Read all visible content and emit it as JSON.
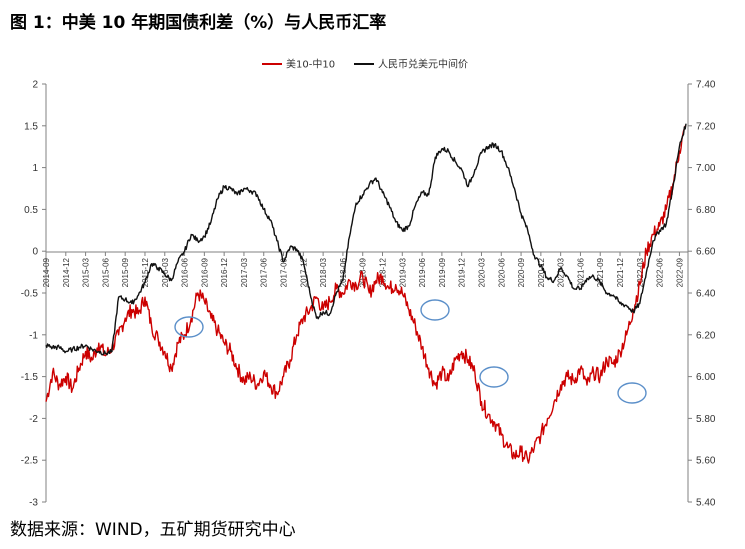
{
  "figure": {
    "title": "图 1：中美 10 年期国债利差（%）与人民币汇率",
    "source": "数据来源：WIND，五矿期货研究中心"
  },
  "colors": {
    "spread": "#cc0000",
    "usdcny": "#111111",
    "markers": "#5b8fc9",
    "axis": "#808080"
  },
  "chart_data": {
    "type": "line",
    "legend_position": "top-center",
    "grid": false,
    "x_ticks": [
      "2014-09",
      "2014-12",
      "2015-03",
      "2015-06",
      "2015-09",
      "2015-12",
      "2016-03",
      "2016-06",
      "2016-09",
      "2016-12",
      "2017-03",
      "2017-06",
      "2017-09",
      "2017-12",
      "2018-03",
      "2018-06",
      "2018-09",
      "2018-12",
      "2019-03",
      "2019-06",
      "2019-09",
      "2019-12",
      "2020-03",
      "2020-06",
      "2020-09",
      "2020-12",
      "2021-03",
      "2021-06",
      "2021-09",
      "2021-12",
      "2022-03",
      "2022-06",
      "2022-09"
    ],
    "y_left": {
      "range": [
        -3,
        2
      ],
      "ticks": [
        "-3",
        "-2.5",
        "-2",
        "-1.5",
        "-1",
        "-0.5",
        "0",
        "0.5",
        "1",
        "1.5",
        "2"
      ]
    },
    "y_right": {
      "range": [
        5.4,
        7.4
      ],
      "ticks": [
        "5.40",
        "5.60",
        "5.80",
        "6.00",
        "6.20",
        "6.40",
        "6.60",
        "6.80",
        "7.00",
        "7.20",
        "7.40"
      ]
    },
    "series": [
      {
        "name": "美10-中10",
        "axis": "left",
        "x": [
          "2014-09",
          "2014-10",
          "2014-11",
          "2014-12",
          "2015-01",
          "2015-02",
          "2015-03",
          "2015-04",
          "2015-05",
          "2015-06",
          "2015-07",
          "2015-08",
          "2015-09",
          "2015-10",
          "2015-11",
          "2015-12",
          "2016-01",
          "2016-02",
          "2016-03",
          "2016-04",
          "2016-05",
          "2016-06",
          "2016-07",
          "2016-08",
          "2016-09",
          "2016-10",
          "2016-11",
          "2016-12",
          "2017-01",
          "2017-02",
          "2017-03",
          "2017-04",
          "2017-05",
          "2017-06",
          "2017-07",
          "2017-08",
          "2017-09",
          "2017-10",
          "2017-11",
          "2017-12",
          "2018-01",
          "2018-02",
          "2018-03",
          "2018-04",
          "2018-05",
          "2018-06",
          "2018-07",
          "2018-08",
          "2018-09",
          "2018-10",
          "2018-11",
          "2018-12",
          "2019-01",
          "2019-02",
          "2019-03",
          "2019-04",
          "2019-05",
          "2019-06",
          "2019-07",
          "2019-08",
          "2019-09",
          "2019-10",
          "2019-11",
          "2019-12",
          "2020-01",
          "2020-02",
          "2020-03",
          "2020-04",
          "2020-05",
          "2020-06",
          "2020-07",
          "2020-08",
          "2020-09",
          "2020-10",
          "2020-11",
          "2020-12",
          "2021-01",
          "2021-02",
          "2021-03",
          "2021-04",
          "2021-05",
          "2021-06",
          "2021-07",
          "2021-08",
          "2021-09",
          "2021-10",
          "2021-11",
          "2021-12",
          "2022-01",
          "2022-02",
          "2022-03",
          "2022-04",
          "2022-05",
          "2022-06",
          "2022-07",
          "2022-08",
          "2022-09",
          "2022-10"
        ],
        "y": [
          -1.8,
          -1.45,
          -1.6,
          -1.5,
          -1.65,
          -1.4,
          -1.2,
          -1.3,
          -1.1,
          -1.25,
          -1.15,
          -1.0,
          -0.8,
          -0.7,
          -0.75,
          -0.55,
          -0.9,
          -1.05,
          -1.2,
          -1.4,
          -1.1,
          -1.0,
          -0.8,
          -0.5,
          -0.6,
          -0.8,
          -0.95,
          -1.1,
          -1.2,
          -1.4,
          -1.55,
          -1.5,
          -1.6,
          -1.45,
          -1.6,
          -1.7,
          -1.5,
          -1.3,
          -1.0,
          -0.8,
          -0.7,
          -0.55,
          -0.7,
          -0.6,
          -0.45,
          -0.5,
          -0.35,
          -0.4,
          -0.3,
          -0.5,
          -0.35,
          -0.3,
          -0.45,
          -0.4,
          -0.5,
          -0.7,
          -0.9,
          -1.15,
          -1.4,
          -1.6,
          -1.45,
          -1.55,
          -1.3,
          -1.2,
          -1.3,
          -1.45,
          -1.8,
          -1.95,
          -2.05,
          -2.2,
          -2.35,
          -2.45,
          -2.4,
          -2.5,
          -2.35,
          -2.2,
          -2.0,
          -1.8,
          -1.6,
          -1.5,
          -1.55,
          -1.4,
          -1.6,
          -1.45,
          -1.5,
          -1.3,
          -1.35,
          -1.2,
          -1.0,
          -0.7,
          -0.4,
          0.0,
          0.2,
          0.3,
          0.5,
          0.8,
          1.2,
          1.5
        ]
      },
      {
        "name": "人民币兑美元中间价",
        "axis": "right",
        "x": [
          "2014-09",
          "2014-10",
          "2014-11",
          "2014-12",
          "2015-01",
          "2015-02",
          "2015-03",
          "2015-04",
          "2015-05",
          "2015-06",
          "2015-07",
          "2015-08",
          "2015-09",
          "2015-10",
          "2015-11",
          "2015-12",
          "2016-01",
          "2016-02",
          "2016-03",
          "2016-04",
          "2016-05",
          "2016-06",
          "2016-07",
          "2016-08",
          "2016-09",
          "2016-10",
          "2016-11",
          "2016-12",
          "2017-01",
          "2017-02",
          "2017-03",
          "2017-04",
          "2017-05",
          "2017-06",
          "2017-07",
          "2017-08",
          "2017-09",
          "2017-10",
          "2017-11",
          "2017-12",
          "2018-01",
          "2018-02",
          "2018-03",
          "2018-04",
          "2018-05",
          "2018-06",
          "2018-07",
          "2018-08",
          "2018-09",
          "2018-10",
          "2018-11",
          "2018-12",
          "2019-01",
          "2019-02",
          "2019-03",
          "2019-04",
          "2019-05",
          "2019-06",
          "2019-07",
          "2019-08",
          "2019-09",
          "2019-10",
          "2019-11",
          "2019-12",
          "2020-01",
          "2020-02",
          "2020-03",
          "2020-04",
          "2020-05",
          "2020-06",
          "2020-07",
          "2020-08",
          "2020-09",
          "2020-10",
          "2020-11",
          "2020-12",
          "2021-01",
          "2021-02",
          "2021-03",
          "2021-04",
          "2021-05",
          "2021-06",
          "2021-07",
          "2021-08",
          "2021-09",
          "2021-10",
          "2021-11",
          "2021-12",
          "2022-01",
          "2022-02",
          "2022-03",
          "2022-04",
          "2022-05",
          "2022-06",
          "2022-07",
          "2022-08",
          "2022-09",
          "2022-10"
        ],
        "y": [
          6.15,
          6.14,
          6.14,
          6.12,
          6.13,
          6.14,
          6.15,
          6.13,
          6.12,
          6.11,
          6.12,
          6.38,
          6.37,
          6.35,
          6.39,
          6.45,
          6.54,
          6.52,
          6.49,
          6.46,
          6.55,
          6.6,
          6.68,
          6.65,
          6.67,
          6.74,
          6.85,
          6.91,
          6.9,
          6.87,
          6.9,
          6.89,
          6.87,
          6.8,
          6.75,
          6.65,
          6.55,
          6.62,
          6.61,
          6.55,
          6.4,
          6.28,
          6.31,
          6.3,
          6.4,
          6.46,
          6.67,
          6.83,
          6.87,
          6.92,
          6.95,
          6.88,
          6.82,
          6.74,
          6.7,
          6.72,
          6.82,
          6.88,
          6.87,
          7.05,
          7.09,
          7.08,
          7.03,
          6.99,
          6.91,
          6.99,
          7.07,
          7.1,
          7.11,
          7.08,
          7.0,
          6.9,
          6.78,
          6.7,
          6.58,
          6.53,
          6.47,
          6.46,
          6.52,
          6.48,
          6.42,
          6.42,
          6.47,
          6.48,
          6.45,
          6.4,
          6.39,
          6.35,
          6.34,
          6.31,
          6.35,
          6.5,
          6.65,
          6.7,
          6.73,
          6.9,
          7.1,
          7.21
        ]
      }
    ]
  }
}
